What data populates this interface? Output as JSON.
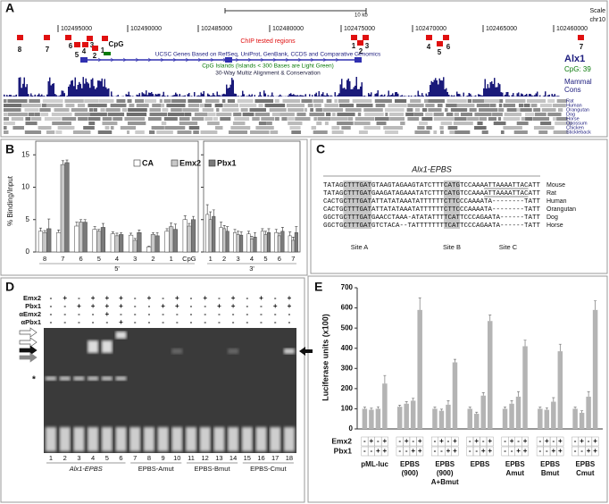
{
  "panel_labels": [
    "A",
    "B",
    "C",
    "D",
    "E"
  ],
  "browser": {
    "scale": "Scale",
    "chrom": "chr10",
    "kb": "10 kb",
    "coords": [
      "102495000",
      "102490000",
      "102485000",
      "102480000",
      "102475000",
      "102470000",
      "102465000",
      "102460000"
    ],
    "chip_title": "ChIP tested regions",
    "chip_left": [
      "8",
      "7",
      "6",
      "5",
      "4",
      "3",
      "2",
      "1",
      "CpG"
    ],
    "chip_right": [
      "1",
      "2",
      "3",
      "4",
      "5",
      "6",
      "7"
    ],
    "genes_title": "UCSC Genes Based on RefSeq, UniProt, GenBank, CCDS and Comparative Genomics",
    "cpg_title": "CpG Islands (Islands < 300 Bases are Light Green)",
    "multiz_title": "30-Way Multiz Alignment & Conservation",
    "gene": "Alx1",
    "cpg": "CpG: 39",
    "cons": [
      "Mammal",
      "Cons"
    ],
    "species": [
      "Rat",
      "Human",
      "Orangutan",
      "Dog",
      "Horse",
      "Opossum",
      "Chicken",
      "Stickleback"
    ]
  },
  "alignment": {
    "title": "Alx1-EPBS",
    "rows": [
      {
        "seq": "TATAGCTTTGATGTAAGTAGAAGTATCTTTCATGTCCAAAATTAAAATTACATT",
        "species": "Mouse"
      },
      {
        "seq": "TATAGCTTTGATGAAGATAGAAATATCTTTCATGTCCAAAATTAAAATTACATT",
        "species": "Rat"
      },
      {
        "seq": "CACTGCTTTGATATTATATAAATATTTTTTCTTCCCAAAATA--------TATT",
        "species": "Human"
      },
      {
        "seq": "CACTGCTTTGATATTATATAAATATTTTTTCTTCCCAAAATA--------TATT",
        "species": "Orangutan"
      },
      {
        "seq": "GGCTGCTTTGATGAACCTAAA-ATATATTTTCATTCCCAGAATA------TATT",
        "species": "Dog"
      },
      {
        "seq": "GGCTGCTTTGATGTCTACA--TATTTTTTTTCATTCCCAGAATA------TATT",
        "species": "Horse"
      }
    ],
    "sites": [
      "Site A",
      "Site B",
      "Site C"
    ]
  },
  "gel": {
    "rows": [
      {
        "label": "Emx2",
        "signs": [
          "-",
          "+",
          "-",
          "+",
          "+",
          "+",
          "-",
          "+",
          "-",
          "+",
          "-",
          "+",
          "-",
          "+",
          "-",
          "+",
          "-",
          "+"
        ]
      },
      {
        "label": "Pbx1",
        "signs": [
          "-",
          "-",
          "+",
          "+",
          "+",
          "+",
          "-",
          "-",
          "+",
          "+",
          "-",
          "-",
          "+",
          "+",
          "-",
          "-",
          "+",
          "+"
        ]
      },
      {
        "label": "αEmx2",
        "signs": [
          "-",
          "-",
          "-",
          "-",
          "+",
          "-",
          "-",
          "-",
          "-",
          "-",
          "-",
          "-",
          "-",
          "-",
          "-",
          "-",
          "-",
          "-"
        ]
      },
      {
        "label": "αPbx1",
        "signs": [
          "-",
          "-",
          "-",
          "-",
          "-",
          "+",
          "-",
          "-",
          "-",
          "-",
          "-",
          "-",
          "-",
          "-",
          "-",
          "-",
          "-",
          "-"
        ]
      }
    ],
    "star": "*",
    "groups": [
      {
        "label": "Alx1-EPBS",
        "lanes": [
          "1",
          "2",
          "3",
          "4",
          "5",
          "6"
        ]
      },
      {
        "label": "EPBS-Amut",
        "lanes": [
          "7",
          "8",
          "9",
          "10"
        ]
      },
      {
        "label": "EPBS-Bmut",
        "lanes": [
          "11",
          "12",
          "13",
          "14"
        ]
      },
      {
        "label": "EPBS-Cmut",
        "lanes": [
          "15",
          "16",
          "17",
          "18"
        ]
      }
    ]
  },
  "chart_data": [
    {
      "type": "bar",
      "y_label": "% Binding/Input",
      "ylim": [
        0,
        16
      ],
      "yticks": [
        0,
        5,
        10,
        15
      ],
      "groups": [
        {
          "label": "5'",
          "categories": [
            "8",
            "7",
            "6",
            "5",
            "4",
            "3",
            "2",
            "1",
            "CpG"
          ]
        },
        {
          "label": "3'",
          "categories": [
            "1",
            "2",
            "3",
            "4",
            "5",
            "6",
            "7"
          ]
        }
      ],
      "series": [
        {
          "name": "CA",
          "color": "#ffffff",
          "values": [
            3.2,
            3.0,
            4.0,
            3.5,
            2.8,
            2.6,
            0.8,
            3.2,
            5.0,
            5.8,
            3.8,
            3.0,
            2.8,
            3.2,
            3.0,
            2.5
          ],
          "errors": [
            0.5,
            0.4,
            0.6,
            0.4,
            0.3,
            0.3,
            0.1,
            0.4,
            0.6,
            1.5,
            0.8,
            0.5,
            0.4,
            0.4,
            0.5,
            0.6
          ]
        },
        {
          "name": "Emx2",
          "color": "#c8c8c8",
          "values": [
            3.0,
            13.5,
            4.6,
            3.2,
            2.5,
            1.8,
            2.7,
            3.9,
            4.0,
            5.0,
            3.6,
            2.7,
            2.0,
            2.7,
            2.5,
            1.8
          ],
          "errors": [
            0.3,
            0.6,
            0.4,
            0.3,
            0.4,
            0.3,
            0.3,
            0.6,
            0.4,
            1.2,
            0.5,
            0.5,
            0.4,
            0.5,
            0.4,
            0.5
          ]
        },
        {
          "name": "Pbx1",
          "color": "#7a7a7a",
          "values": [
            3.6,
            13.8,
            4.6,
            3.8,
            2.7,
            3.0,
            2.5,
            3.5,
            5.0,
            5.5,
            3.2,
            2.6,
            2.3,
            3.0,
            3.2,
            3.0
          ],
          "errors": [
            1.5,
            0.4,
            0.4,
            0.6,
            0.3,
            0.4,
            0.5,
            0.8,
            0.5,
            1.0,
            0.7,
            0.5,
            0.7,
            0.6,
            0.6,
            0.9
          ]
        }
      ]
    },
    {
      "type": "bar",
      "y_label": "Luciferase units (x100)",
      "ylim": [
        0,
        700
      ],
      "yticks": [
        0,
        100,
        200,
        300,
        400,
        500,
        600,
        700
      ],
      "color": "#b4b4b4",
      "conditions": [
        {
          "label": "Emx2",
          "signs": [
            "-",
            "+",
            "-",
            "+"
          ]
        },
        {
          "label": "Pbx1",
          "signs": [
            "-",
            "-",
            "+",
            "+"
          ]
        }
      ],
      "groups": [
        {
          "label": [
            "pML-luc"
          ],
          "values": [
            100,
            95,
            100,
            225
          ],
          "errors": [
            8,
            8,
            10,
            40
          ]
        },
        {
          "label": [
            "EPBS",
            "(900)"
          ],
          "values": [
            110,
            125,
            140,
            590
          ],
          "errors": [
            8,
            10,
            12,
            60
          ]
        },
        {
          "label": [
            "EPBS",
            "(900)",
            "A+Bmut"
          ],
          "values": [
            100,
            90,
            120,
            330
          ],
          "errors": [
            8,
            8,
            20,
            15
          ]
        },
        {
          "label": [
            "EPBS"
          ],
          "values": [
            100,
            75,
            165,
            535
          ],
          "errors": [
            8,
            8,
            15,
            30
          ]
        },
        {
          "label": [
            "EPBS",
            "Amut"
          ],
          "values": [
            100,
            125,
            160,
            410
          ],
          "errors": [
            8,
            15,
            25,
            30
          ]
        },
        {
          "label": [
            "EPBS",
            "Bmut"
          ],
          "values": [
            100,
            95,
            135,
            385
          ],
          "errors": [
            8,
            10,
            20,
            35
          ]
        },
        {
          "label": [
            "EPBS",
            "Cmut"
          ],
          "values": [
            100,
            80,
            160,
            590
          ],
          "errors": [
            8,
            10,
            25,
            45
          ]
        }
      ]
    }
  ]
}
